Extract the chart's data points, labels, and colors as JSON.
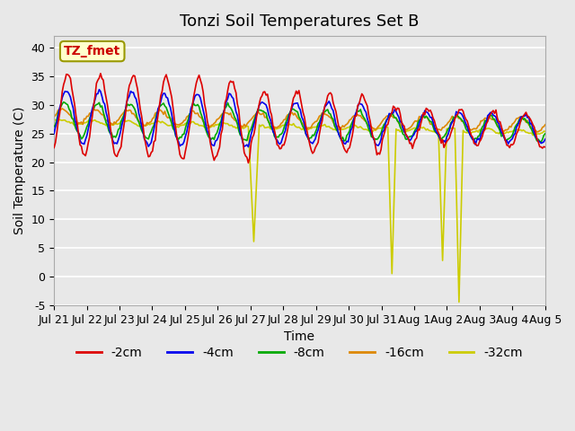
{
  "title": "Tonzi Soil Temperatures Set B",
  "xlabel": "Time",
  "ylabel": "Soil Temperature (C)",
  "ylim": [
    -5,
    42
  ],
  "yticks": [
    -5,
    0,
    5,
    10,
    15,
    20,
    25,
    30,
    35,
    40
  ],
  "annotation_text": "TZ_fmet",
  "legend_labels": [
    "-2cm",
    "-4cm",
    "-8cm",
    "-16cm",
    "-32cm"
  ],
  "line_colors": [
    "#dd0000",
    "#0000ee",
    "#00aa00",
    "#dd8800",
    "#cccc00"
  ],
  "background_color": "#e8e8e8",
  "plot_bg_color": "#e8e8e8",
  "grid_color": "#ffffff",
  "xtick_labels": [
    "Jul 21",
    "Jul 22",
    "Jul 23",
    "Jul 24",
    "Jul 25",
    "Jul 26",
    "Jul 27",
    "Jul 28",
    "Jul 29",
    "Jul 30",
    "Jul 31",
    "Aug 1",
    "Aug 2",
    "Aug 3",
    "Aug 4",
    "Aug 5"
  ],
  "title_fontsize": 13,
  "axis_label_fontsize": 10,
  "tick_fontsize": 9,
  "legend_fontsize": 10,
  "n_days": 15
}
